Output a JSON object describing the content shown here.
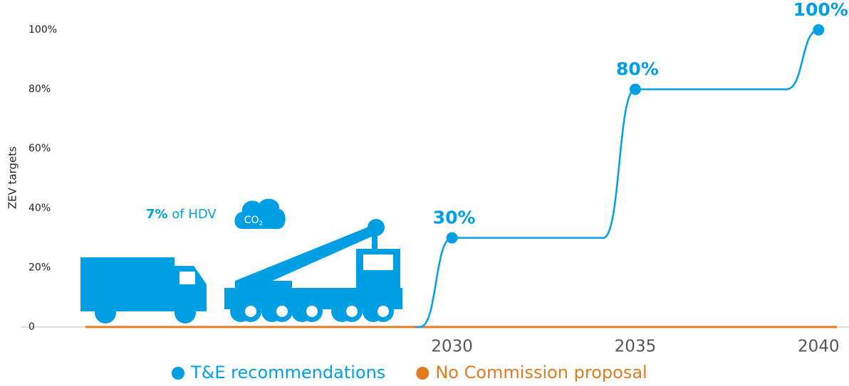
{
  "chart_data": {
    "type": "line",
    "y_label": "ZEV targets",
    "annotation": {
      "bold": "7%",
      "text": " of HDV",
      "icon": [
        "CO",
        "2"
      ]
    },
    "xlim": [
      2020,
      2040.5
    ],
    "xticks": [
      2030,
      2035,
      2040
    ],
    "ylim": [
      0,
      100
    ],
    "yticks": [
      0,
      {
        "value": 20,
        "label": "20%"
      },
      {
        "value": 40,
        "label": "40%"
      },
      {
        "value": 60,
        "label": "60%"
      },
      {
        "value": 80,
        "label": "80%"
      },
      {
        "value": 100,
        "label": "100%"
      }
    ],
    "series": [
      {
        "name": "T&E recommendations",
        "color": "#009fe3",
        "x": [
          2029,
          2030,
          2035,
          2040
        ],
        "values": [
          0,
          30,
          80,
          100
        ],
        "value_labels": [
          null,
          "30%",
          "80%",
          "100%"
        ]
      },
      {
        "name": "No Commission proposal",
        "color": "#e07b22",
        "x": [
          2020,
          2040.5
        ],
        "values": [
          0,
          0
        ]
      }
    ]
  }
}
